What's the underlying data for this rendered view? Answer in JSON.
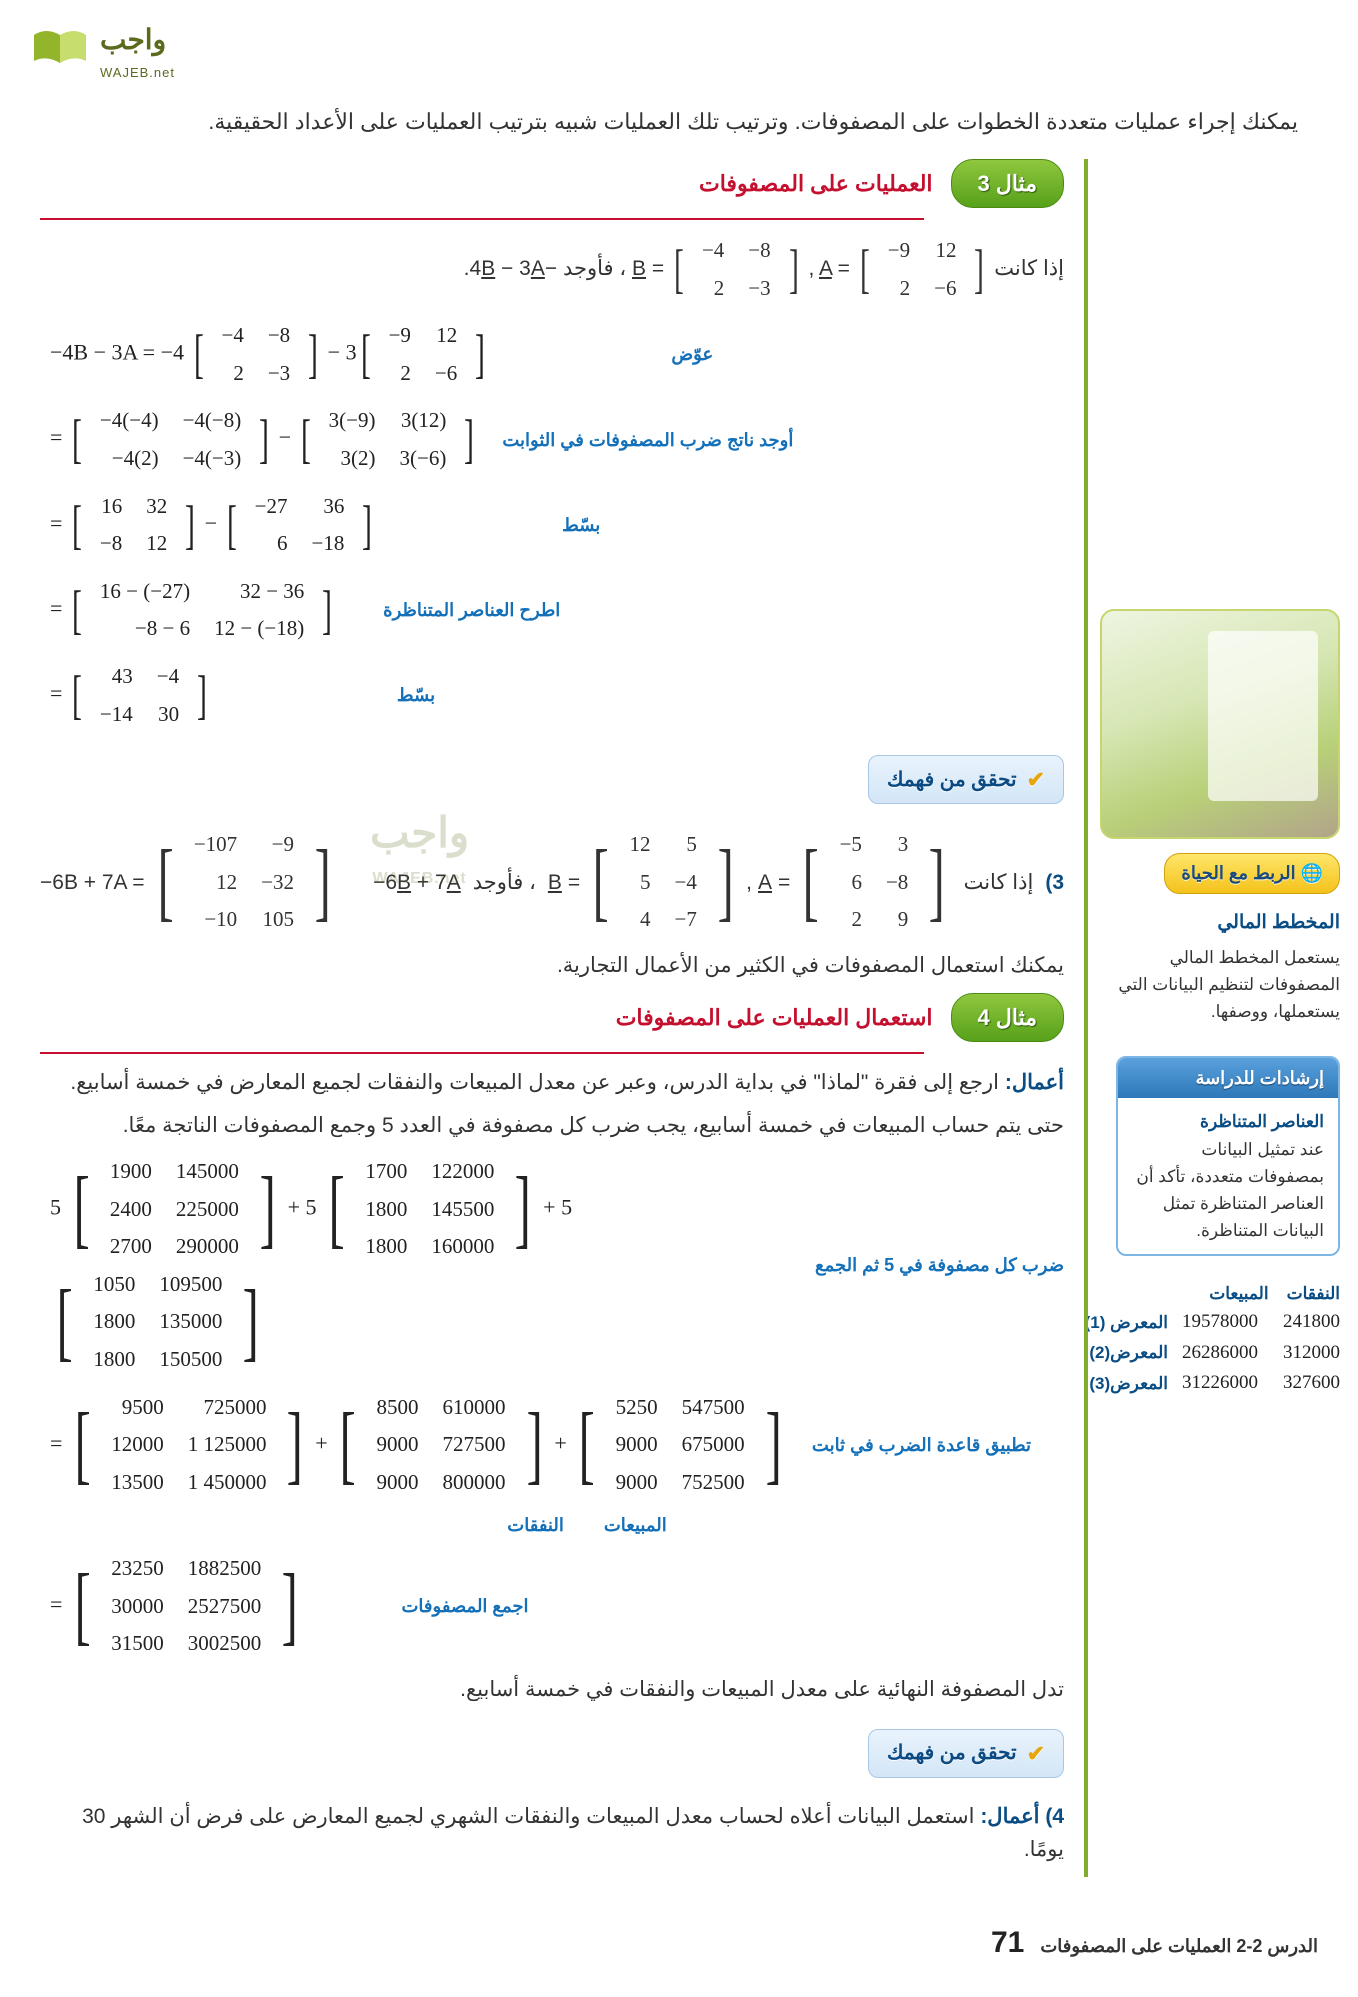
{
  "logo": {
    "ar": "واجب",
    "en": "WAJEB.net"
  },
  "intro": "يمكنك إجراء عمليات متعددة الخطوات على المصفوفات. وترتيب تلك العمليات شبيه بترتيب العمليات على الأعداد الحقيقية.",
  "example3": {
    "label": "مثال 3",
    "title": "العمليات على المصفوفات",
    "given_rtl": "إذا كانت",
    "find_rtl": "، فأوجد",
    "expr": "−4B − 3A",
    "B": [
      [
        "−4",
        "−8"
      ],
      [
        "2",
        "−3"
      ]
    ],
    "A": [
      [
        "−9",
        "12"
      ],
      [
        "2",
        "−6"
      ]
    ],
    "steps": [
      {
        "label": "عوّض",
        "lhs": "−4B − 3A =",
        "pre": "−4",
        "M1": [
          [
            "−4",
            "−8"
          ],
          [
            "2",
            "−3"
          ]
        ],
        "mid": " − 3",
        "M2": [
          [
            "−9",
            "12"
          ],
          [
            "2",
            "−6"
          ]
        ]
      },
      {
        "label": "أوجد ناتج ضرب المصفوفات في الثوابت",
        "lhs": "=",
        "M1": [
          [
            "−4(−4)",
            "−4(−8)"
          ],
          [
            "−4(2)",
            "−4(−3)"
          ]
        ],
        "mid": " − ",
        "M2": [
          [
            "3(−9)",
            "3(12)"
          ],
          [
            "3(2)",
            "3(−6)"
          ]
        ]
      },
      {
        "label": "بسّط",
        "lhs": "=",
        "M1": [
          [
            "16",
            "32"
          ],
          [
            "−8",
            "12"
          ]
        ],
        "mid": " − ",
        "M2": [
          [
            "−27",
            "36"
          ],
          [
            "6",
            "−18"
          ]
        ]
      },
      {
        "label": "اطرح العناصر المتناظرة",
        "lhs": "=",
        "M1": [
          [
            "16 − (−27)",
            "32 − 36"
          ],
          [
            "−8 − 6",
            "12 − (−18)"
          ]
        ]
      },
      {
        "label": "بسّط",
        "lhs": "=",
        "M1": [
          [
            "43",
            "−4"
          ],
          [
            "−14",
            "30"
          ]
        ]
      }
    ]
  },
  "check": "تحقق من فهمك",
  "q3": {
    "num": "3)",
    "given": "إذا كانت",
    "B": [
      [
        "12",
        "5"
      ],
      [
        "5",
        "−4"
      ],
      [
        "4",
        "−7"
      ]
    ],
    "A": [
      [
        "−5",
        "3"
      ],
      [
        "6",
        "−8"
      ],
      [
        "2",
        "9"
      ]
    ],
    "find": "، فأوجد",
    "expr": "−6B + 7A",
    "ans": [
      [
        "−107",
        "−9"
      ],
      [
        "12",
        "−32"
      ],
      [
        "−10",
        "105"
      ]
    ]
  },
  "transition": "يمكنك استعمال المصفوفات في الكثير من الأعمال التجارية.",
  "sideLife": {
    "pill": "الربط مع الحياة",
    "head": "المخطط المالي",
    "body": "يستعمل المخطط المالي المصفوفات لتنظيم البيانات التي يستعملها، ووصفها."
  },
  "study": {
    "head": "إرشادات للدراسة",
    "sub": "العناصر المتناظرة",
    "body": "عند تمثيل البيانات بمصفوفات متعددة، تأكد أن العناصر المتناظرة تمثل البيانات المتناظرة."
  },
  "sideTable": {
    "h1": "النفقات",
    "h2": "المبيعات",
    "rows": [
      {
        "exp": "241800",
        "sales": "19578000",
        "label": "المعرض (1)"
      },
      {
        "exp": "312000",
        "sales": "26286000",
        "label": "المعرض(2)"
      },
      {
        "exp": "327600",
        "sales": "31226000",
        "label": "المعرض(3)"
      }
    ]
  },
  "example4": {
    "label": "مثال 4",
    "title": "استعمال العمليات على المصفوفات",
    "lead": "أعمال:",
    "leadText": "ارجع إلى فقرة \"لماذا\" في بداية الدرس، وعبر عن معدل المبيعات والنفقات لجميع المعارض في خمسة أسابيع.",
    "para1": "حتى يتم حساب المبيعات في خمسة أسابيع، يجب ضرب كل مصفوفة في العدد 5 وجمع المصفوفات الناتجة معًا.",
    "step1": {
      "label": "ضرب كل مصفوفة في 5 ثم الجمع",
      "k": "5",
      "M1": [
        [
          "1900",
          "145000"
        ],
        [
          "2400",
          "225000"
        ],
        [
          "2700",
          "290000"
        ]
      ],
      "M2": [
        [
          "1700",
          "122000"
        ],
        [
          "1800",
          "145500"
        ],
        [
          "1800",
          "160000"
        ]
      ],
      "M3": [
        [
          "1050",
          "109500"
        ],
        [
          "1800",
          "135000"
        ],
        [
          "1800",
          "150500"
        ]
      ]
    },
    "step2": {
      "label": "تطبيق قاعدة الضرب في ثابت",
      "M1": [
        [
          "9500",
          "725000"
        ],
        [
          "12000",
          "1 125000"
        ],
        [
          "13500",
          "1 450000"
        ]
      ],
      "M2": [
        [
          "8500",
          "610000"
        ],
        [
          "9000",
          "727500"
        ],
        [
          "9000",
          "800000"
        ]
      ],
      "M3": [
        [
          "5250",
          "547500"
        ],
        [
          "9000",
          "675000"
        ],
        [
          "9000",
          "752500"
        ]
      ]
    },
    "colh1": "المبيعات",
    "colh2": "النفقات",
    "step3": {
      "label": "اجمع المصفوفات",
      "M": [
        [
          "23250",
          "1882500"
        ],
        [
          "30000",
          "2527500"
        ],
        [
          "31500",
          "3002500"
        ]
      ]
    },
    "closing": "تدل المصفوفة النهائية على معدل المبيعات والنفقات في خمسة أسابيع."
  },
  "q4": {
    "num": "4)",
    "lead": "أعمال:",
    "text": "استعمل البيانات أعلاه لحساب معدل المبيعات والنفقات الشهري لجميع المعارض على فرض أن الشهر 30 يومًا."
  },
  "footer": {
    "page": "71",
    "text": "الدرس 2-2  العمليات على المصفوفات"
  }
}
